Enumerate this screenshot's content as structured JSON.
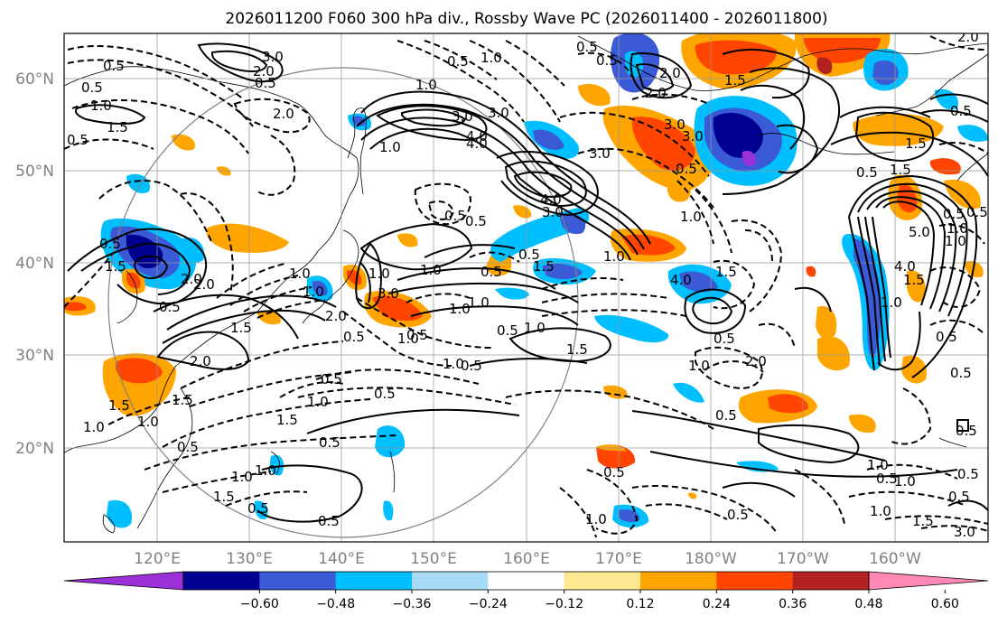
{
  "title": "2026011200 F060 300 hPa div., Rossby Wave PC (2026011400 - 2026011800)",
  "map": {
    "lon_labels": [
      "120°E",
      "130°E",
      "140°E",
      "150°E",
      "160°E",
      "170°E",
      "180°W",
      "170°W",
      "160°W"
    ],
    "lat_labels": [
      "60°N",
      "50°N",
      "40°N",
      "30°N",
      "20°N"
    ],
    "contour_labels": [
      "3.0",
      "2.0",
      "0.5",
      "0.5",
      "1.5",
      "0.5",
      "1.0",
      "0.5",
      "2.0",
      "1.0",
      "3.0",
      "4.0",
      "1.0",
      "0.5",
      "1.0",
      "3.0",
      "4.0",
      "0.5",
      "3.0",
      "1.0",
      "0.5",
      "1.0",
      "0.5",
      "1.5",
      "2.0",
      "2.0",
      "1.5",
      "1.0",
      "0.5",
      "0.5",
      "1.0",
      "0.5",
      "0.5",
      "1.5",
      "0.5",
      "2.0",
      "1.0",
      "0.5",
      "0.5",
      "1.0",
      "1.5",
      "2.0",
      "0.5",
      "0.5",
      "1.0",
      "4.0",
      "1.5",
      "1.5",
      "0.5",
      "1.0",
      "5.0",
      "4.0",
      "3.0",
      "1.5",
      "0.5",
      "0.5",
      "1.0",
      "0.5",
      "1.0",
      "1.0",
      "0.5",
      "0.5",
      "1.0",
      "0.5",
      "0.5",
      "0.5",
      "1.0",
      "0.5",
      "1.0",
      "2.0",
      "3.0",
      "1.5",
      "1.5",
      "2.0",
      "4.0",
      "3.0",
      "1.5",
      "0.5",
      "1.0",
      "0.5",
      "1.0",
      "1.0",
      "0.5",
      "1.5",
      "1.0",
      "3.0",
      "0.5",
      "1.5",
      "1.0",
      "0.5",
      "2.0",
      "0.5",
      "1.0",
      "0.5",
      "0.5",
      "1.0",
      "1.0",
      "0.5",
      "0.5",
      "1.5"
    ],
    "feature_labels": [
      "1.0",
      "0.5",
      "1.0",
      "2.0",
      "1.5",
      "3.0"
    ]
  },
  "colorbar": {
    "ticks": [
      "−0.60",
      "−0.48",
      "−0.36",
      "−0.24",
      "−0.12",
      "0.12",
      "0.24",
      "0.36",
      "0.48",
      "0.60"
    ],
    "colors": [
      "#9b30d8",
      "#000090",
      "#3a5ad6",
      "#00bfff",
      "#a8dcf6",
      "#ffffff",
      "#ffe890",
      "#ffa500",
      "#ff4500",
      "#b22222",
      "#ff89b4"
    ]
  }
}
